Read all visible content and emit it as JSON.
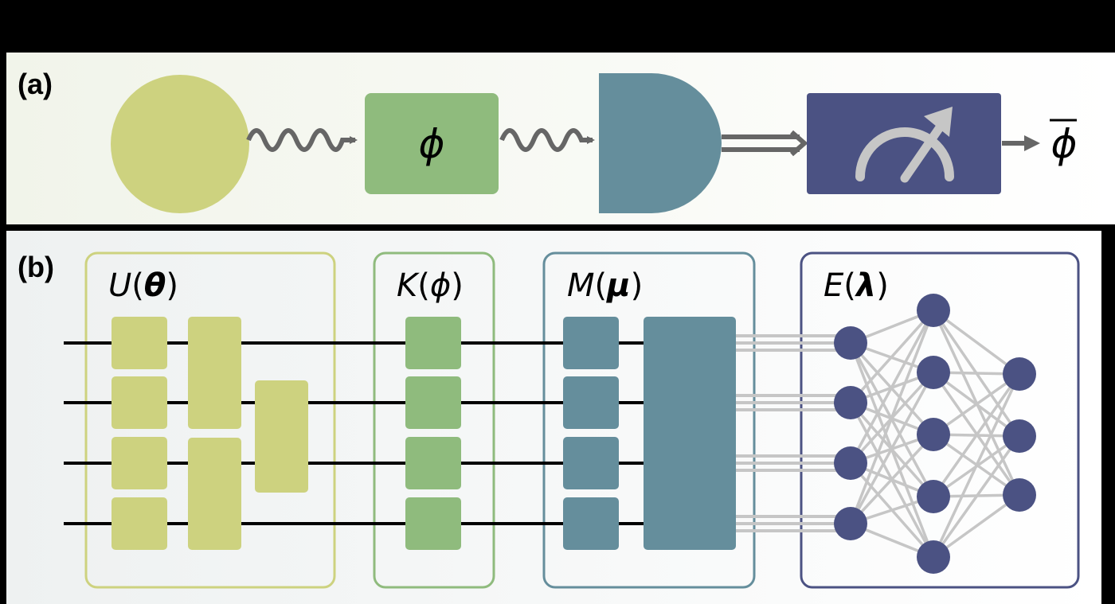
{
  "panel_a": {
    "label": "(a)",
    "operator_symbol": "ϕ",
    "estimate_symbol": "ϕ",
    "colors": {
      "source": "#cdd27f",
      "operator": "#8fbb7d",
      "detector": "#658e9c",
      "meter": "#4b5283",
      "meter_needle": "#c6c6c6",
      "arrow": "#666666"
    },
    "icons": [
      "source-circle",
      "wavy-photon-arrow",
      "detector-shape",
      "meter-icon",
      "double-arrow"
    ]
  },
  "panel_b": {
    "label": "(b)",
    "blocks": [
      {
        "name": "U",
        "arg": "θ",
        "color": "#cdd27f",
        "border": "#cdd27f"
      },
      {
        "name": "K",
        "arg": "ϕ",
        "color": "#8fbb7d",
        "border": "#8fbb7d"
      },
      {
        "name": "M",
        "arg": "μ",
        "color": "#658e9c",
        "border": "#658e9c"
      },
      {
        "name": "E",
        "arg": "λ",
        "color": "#4b5283",
        "border": "#4b5283"
      }
    ],
    "qubit_count": 4,
    "network_layers": [
      4,
      5,
      3
    ],
    "colors": {
      "wire": "#000000",
      "classical": "#c6c6c6",
      "node": "#4b5283"
    }
  }
}
